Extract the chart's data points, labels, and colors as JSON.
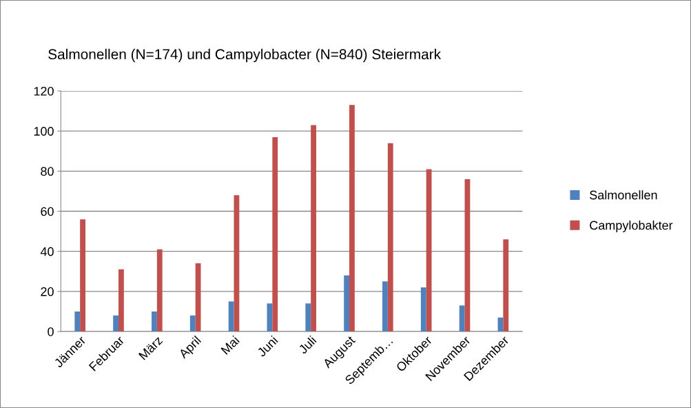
{
  "chart_data": {
    "type": "bar",
    "title": "Salmonellen (N=174) und Campylobacter (N=840) Steiermark",
    "categories": [
      "Jänner",
      "Februar",
      "März",
      "April",
      "Mai",
      "Juni",
      "Juli",
      "August",
      "Septemb…",
      "Oktober",
      "November",
      "Dezember"
    ],
    "series": [
      {
        "name": "Salmonellen",
        "color": "#4f81bd",
        "values": [
          10,
          8,
          10,
          8,
          15,
          14,
          14,
          28,
          25,
          22,
          13,
          7
        ]
      },
      {
        "name": "Campylobakter",
        "color": "#c0504d",
        "values": [
          56,
          31,
          41,
          34,
          68,
          97,
          103,
          113,
          94,
          81,
          76,
          46
        ]
      }
    ],
    "ylim": [
      0,
      120
    ],
    "yticks": [
      0,
      20,
      40,
      60,
      80,
      100,
      120
    ],
    "grid": "y",
    "legend": "right"
  }
}
